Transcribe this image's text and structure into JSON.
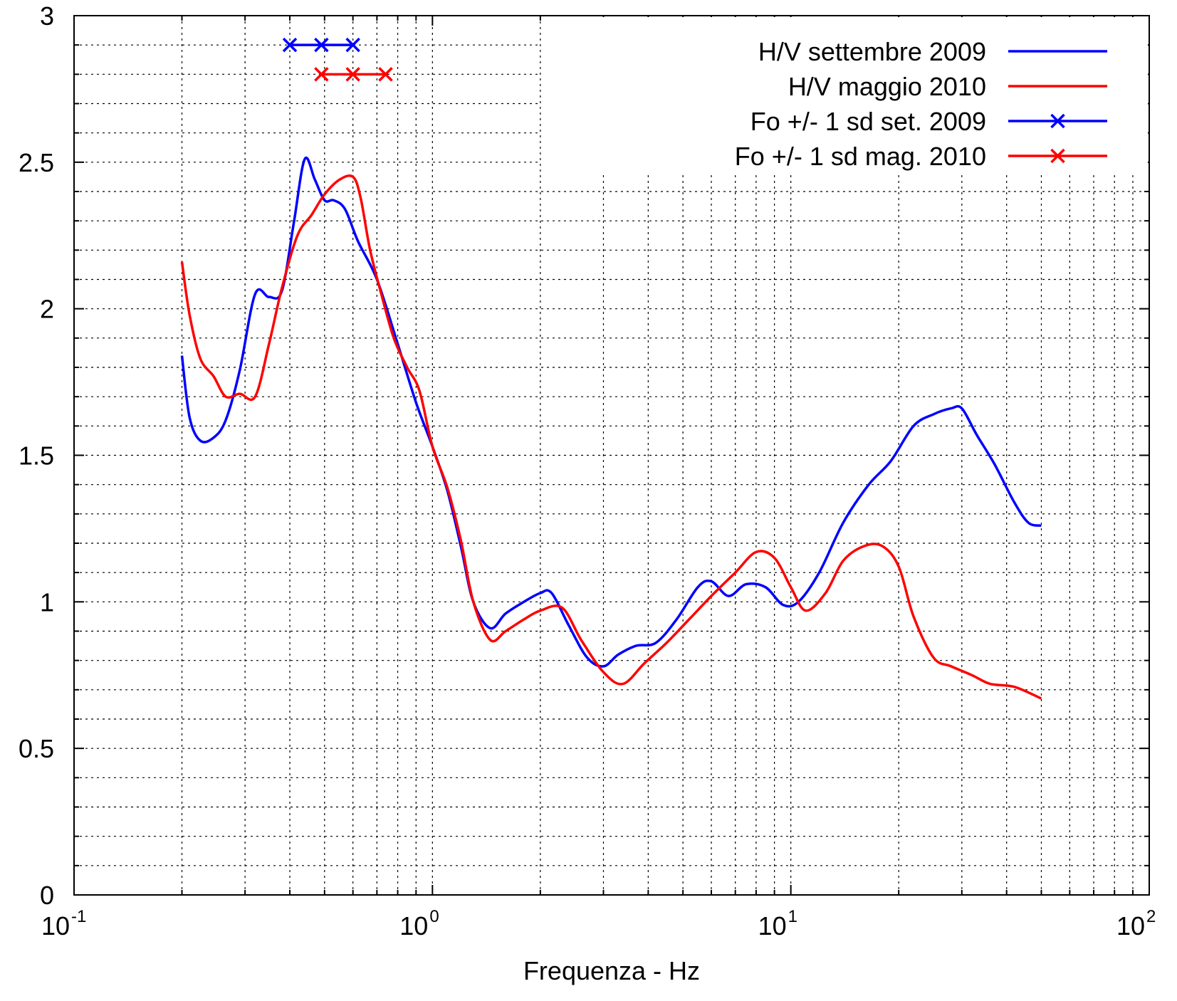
{
  "chart_data": {
    "type": "line",
    "title": "",
    "xlabel": "Frequenza - Hz",
    "ylabel": "",
    "xscale": "log",
    "xlim": [
      0.1,
      100
    ],
    "ylim": [
      0,
      3
    ],
    "grid": true,
    "legend_position": "top-right",
    "x_ticks": [
      {
        "base": "10",
        "exp": "-1",
        "value": 0.1
      },
      {
        "base": "10",
        "exp": "0",
        "value": 1
      },
      {
        "base": "10",
        "exp": "1",
        "value": 10
      },
      {
        "base": "10",
        "exp": "2",
        "value": 100
      }
    ],
    "y_ticks": [
      "0",
      "0.5",
      "1",
      "1.5",
      "2",
      "2.5",
      "3"
    ],
    "series": [
      {
        "name": "H/V settembre 2009",
        "color": "#0000ff",
        "style": "line",
        "x": [
          0.2,
          0.21,
          0.225,
          0.245,
          0.265,
          0.29,
          0.32,
          0.35,
          0.38,
          0.41,
          0.44,
          0.47,
          0.5,
          0.53,
          0.57,
          0.62,
          0.7,
          0.8,
          0.9,
          1.0,
          1.1,
          1.2,
          1.3,
          1.45,
          1.6,
          1.8,
          2.0,
          2.15,
          2.4,
          2.7,
          3.0,
          3.3,
          3.7,
          4.2,
          4.8,
          5.5,
          6.0,
          6.7,
          7.5,
          8.5,
          9.5,
          10.5,
          12,
          14,
          16.5,
          19,
          22,
          25,
          28,
          30,
          33,
          37,
          42,
          46,
          50
        ],
        "y": [
          1.84,
          1.63,
          1.55,
          1.56,
          1.62,
          1.79,
          2.05,
          2.04,
          2.06,
          2.29,
          2.51,
          2.44,
          2.37,
          2.37,
          2.34,
          2.23,
          2.1,
          1.88,
          1.68,
          1.53,
          1.38,
          1.19,
          1.0,
          0.91,
          0.96,
          1.0,
          1.03,
          1.03,
          0.92,
          0.81,
          0.78,
          0.82,
          0.85,
          0.86,
          0.94,
          1.05,
          1.07,
          1.02,
          1.06,
          1.05,
          0.99,
          1.0,
          1.1,
          1.27,
          1.4,
          1.48,
          1.6,
          1.64,
          1.66,
          1.66,
          1.57,
          1.47,
          1.34,
          1.27,
          1.26
        ]
      },
      {
        "name": "H/V maggio 2010",
        "color": "#ff0000",
        "style": "line",
        "x": [
          0.2,
          0.21,
          0.225,
          0.245,
          0.265,
          0.29,
          0.32,
          0.35,
          0.38,
          0.42,
          0.46,
          0.5,
          0.55,
          0.6,
          0.63,
          0.67,
          0.72,
          0.78,
          0.85,
          0.92,
          1.0,
          1.1,
          1.2,
          1.3,
          1.45,
          1.6,
          1.8,
          2.0,
          2.3,
          2.6,
          3.0,
          3.4,
          3.9,
          4.5,
          5.2,
          6.0,
          7.0,
          8.0,
          9.0,
          10.0,
          11.0,
          12.5,
          14,
          16,
          18,
          20,
          22,
          25,
          28,
          32,
          36,
          42,
          50
        ],
        "y": [
          2.16,
          1.98,
          1.83,
          1.77,
          1.7,
          1.71,
          1.7,
          1.88,
          2.07,
          2.25,
          2.32,
          2.39,
          2.44,
          2.45,
          2.38,
          2.2,
          2.05,
          1.9,
          1.8,
          1.72,
          1.53,
          1.39,
          1.21,
          1.0,
          0.87,
          0.9,
          0.94,
          0.97,
          0.98,
          0.87,
          0.76,
          0.72,
          0.79,
          0.86,
          0.94,
          1.02,
          1.1,
          1.17,
          1.15,
          1.05,
          0.97,
          1.03,
          1.14,
          1.19,
          1.19,
          1.12,
          0.95,
          0.81,
          0.78,
          0.75,
          0.72,
          0.71,
          0.67
        ]
      },
      {
        "name": "Fo +/- 1 sd set. 2009",
        "color": "#0000ff",
        "style": "linespoints",
        "x": [
          0.4,
          0.49,
          0.6
        ],
        "y": [
          2.9,
          2.9,
          2.9
        ]
      },
      {
        "name": "Fo +/- 1 sd mag. 2010",
        "color": "#ff0000",
        "style": "linespoints",
        "x": [
          0.49,
          0.6,
          0.74
        ],
        "y": [
          2.8,
          2.8,
          2.8
        ]
      }
    ]
  }
}
